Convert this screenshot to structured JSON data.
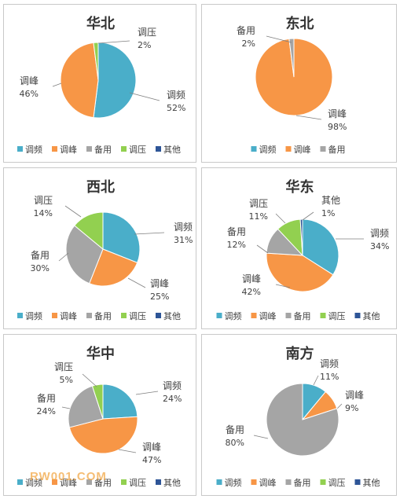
{
  "legend_labels": [
    "调频",
    "调峰",
    "备用",
    "调压",
    "其他"
  ],
  "colors": {
    "调频": "#4aaec9",
    "调峰": "#f79646",
    "备用": "#a5a5a5",
    "调压": "#92d050",
    "其他": "#2e5597"
  },
  "watermark": "RW001.COM",
  "chart_data": [
    {
      "type": "pie",
      "title": "华北",
      "slices": [
        {
          "label": "调频",
          "value": 52,
          "pct_text": "52%"
        },
        {
          "label": "调峰",
          "value": 46,
          "pct_text": "46%"
        },
        {
          "label": "调压",
          "value": 2,
          "pct_text": "2%"
        }
      ],
      "legend": [
        "调频",
        "调峰",
        "备用",
        "调压",
        "其他"
      ]
    },
    {
      "type": "pie",
      "title": "东北",
      "slices": [
        {
          "label": "调峰",
          "value": 98,
          "pct_text": "98%"
        },
        {
          "label": "备用",
          "value": 2,
          "pct_text": "2%"
        }
      ],
      "legend": [
        "调频",
        "调峰",
        "备用"
      ]
    },
    {
      "type": "pie",
      "title": "西北",
      "slices": [
        {
          "label": "调频",
          "value": 31,
          "pct_text": "31%"
        },
        {
          "label": "调峰",
          "value": 25,
          "pct_text": "25%"
        },
        {
          "label": "备用",
          "value": 30,
          "pct_text": "30%"
        },
        {
          "label": "调压",
          "value": 14,
          "pct_text": "14%"
        }
      ],
      "legend": [
        "调频",
        "调峰",
        "备用",
        "调压",
        "其他"
      ]
    },
    {
      "type": "pie",
      "title": "华东",
      "slices": [
        {
          "label": "调频",
          "value": 34,
          "pct_text": "34%"
        },
        {
          "label": "调峰",
          "value": 42,
          "pct_text": "42%"
        },
        {
          "label": "备用",
          "value": 12,
          "pct_text": "12%"
        },
        {
          "label": "调压",
          "value": 11,
          "pct_text": "11%"
        },
        {
          "label": "其他",
          "value": 1,
          "pct_text": "1%"
        }
      ],
      "legend": [
        "调频",
        "调峰",
        "备用",
        "调压",
        "其他"
      ]
    },
    {
      "type": "pie",
      "title": "华中",
      "slices": [
        {
          "label": "调频",
          "value": 24,
          "pct_text": "24%"
        },
        {
          "label": "调峰",
          "value": 47,
          "pct_text": "47%"
        },
        {
          "label": "备用",
          "value": 24,
          "pct_text": "24%"
        },
        {
          "label": "调压",
          "value": 5,
          "pct_text": "5%"
        }
      ],
      "legend": [
        "调频",
        "调峰",
        "备用",
        "调压",
        "其他"
      ]
    },
    {
      "type": "pie",
      "title": "南方",
      "slices": [
        {
          "label": "调频",
          "value": 11,
          "pct_text": "11%"
        },
        {
          "label": "调峰",
          "value": 9,
          "pct_text": "9%"
        },
        {
          "label": "备用",
          "value": 80,
          "pct_text": "80%"
        }
      ],
      "legend": [
        "调频",
        "调峰",
        "备用",
        "调压",
        "其他"
      ]
    }
  ]
}
